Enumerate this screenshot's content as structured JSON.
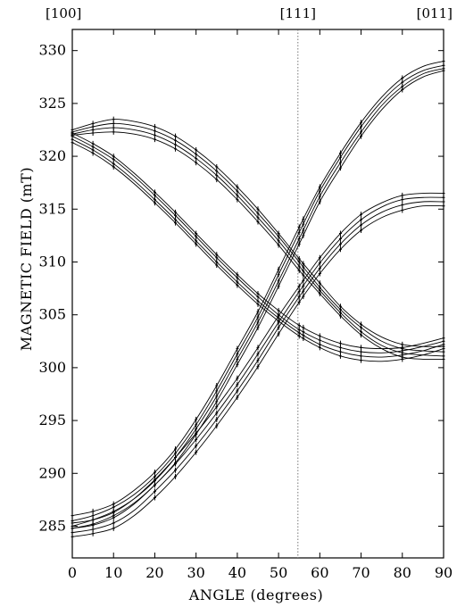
{
  "chart_data": {
    "type": "line",
    "title": "",
    "xlabel": "ANGLE (degrees)",
    "ylabel": "MAGNETIC FIELD (mT)",
    "xlim": [
      0,
      90
    ],
    "ylim": [
      282,
      332
    ],
    "x_ticks": [
      0,
      10,
      20,
      30,
      40,
      50,
      60,
      70,
      80,
      90
    ],
    "y_ticks": [
      285,
      290,
      295,
      300,
      305,
      310,
      315,
      320,
      325,
      330
    ],
    "grid": false,
    "legend": "none",
    "crystal_directions": [
      {
        "label": "[100]",
        "angle": 0
      },
      {
        "label": "[111]",
        "angle": 54.7
      },
      {
        "label": "[011]",
        "angle": 90
      }
    ],
    "reference_line": {
      "angle": 54.7,
      "style": "dotted"
    },
    "x": [
      0,
      5,
      10,
      15,
      20,
      25,
      30,
      35,
      40,
      45,
      50,
      55,
      60,
      65,
      70,
      75,
      80,
      85,
      90
    ],
    "series": [
      {
        "values": [
          322.5,
          323.1,
          323.5,
          323.3,
          322.8,
          321.9,
          320.6,
          319.0,
          317.1,
          315.0,
          312.7,
          310.3,
          308.0,
          305.8,
          304.1,
          302.9,
          302.2,
          302.0,
          302.0
        ]
      },
      {
        "values": [
          322.3,
          322.8,
          323.1,
          322.9,
          322.4,
          321.5,
          320.2,
          318.6,
          316.7,
          314.6,
          312.4,
          310.0,
          307.6,
          305.5,
          303.8,
          302.5,
          301.8,
          301.6,
          301.5
        ]
      },
      {
        "values": [
          322.1,
          322.5,
          322.7,
          322.5,
          322.0,
          321.1,
          319.8,
          318.2,
          316.3,
          314.2,
          312.0,
          309.6,
          307.3,
          305.2,
          303.4,
          302.1,
          301.4,
          301.2,
          301.1
        ]
      },
      {
        "values": [
          322.0,
          322.2,
          322.3,
          322.1,
          321.6,
          320.7,
          319.4,
          317.8,
          315.9,
          313.8,
          311.6,
          309.2,
          307.0,
          304.9,
          303.1,
          301.8,
          301.0,
          300.8,
          300.8
        ]
      },
      {
        "values": [
          322.2,
          321.2,
          320.0,
          318.4,
          316.6,
          314.7,
          312.7,
          310.7,
          308.8,
          307.0,
          305.4,
          304.0,
          303.0,
          302.3,
          301.9,
          301.8,
          301.9,
          302.3,
          302.8
        ]
      },
      {
        "values": [
          321.9,
          320.9,
          319.7,
          318.1,
          316.3,
          314.4,
          312.4,
          310.4,
          308.5,
          306.7,
          305.0,
          303.6,
          302.6,
          301.9,
          301.5,
          301.4,
          301.6,
          302.0,
          302.5
        ]
      },
      {
        "values": [
          321.6,
          320.6,
          319.3,
          317.7,
          315.9,
          314.0,
          312.0,
          310.0,
          308.1,
          306.3,
          304.7,
          303.3,
          302.2,
          301.5,
          301.1,
          301.0,
          301.2,
          301.6,
          302.2
        ]
      },
      {
        "values": [
          321.3,
          320.3,
          319.0,
          317.4,
          315.6,
          313.7,
          311.7,
          309.7,
          307.8,
          306.0,
          304.4,
          303.0,
          301.9,
          301.1,
          300.7,
          300.6,
          300.8,
          301.2,
          301.8
        ]
      },
      {
        "values": [
          286.0,
          286.4,
          287.1,
          288.4,
          290.1,
          292.3,
          295.1,
          298.3,
          301.8,
          305.3,
          309.3,
          313.3,
          317.1,
          320.3,
          323.2,
          325.6,
          327.4,
          328.5,
          329.0
        ]
      },
      {
        "values": [
          285.5,
          286.0,
          286.8,
          288.0,
          289.7,
          291.9,
          294.6,
          297.8,
          301.3,
          304.8,
          308.8,
          312.8,
          316.7,
          319.9,
          322.8,
          325.2,
          327.0,
          328.1,
          328.6
        ]
      },
      {
        "values": [
          285.0,
          285.6,
          286.4,
          287.6,
          289.3,
          291.5,
          294.2,
          297.3,
          300.8,
          304.3,
          308.2,
          312.2,
          316.2,
          319.4,
          322.3,
          324.8,
          326.6,
          327.8,
          328.3
        ]
      },
      {
        "values": [
          284.8,
          285.2,
          286.0,
          287.2,
          288.9,
          291.0,
          293.7,
          296.8,
          300.3,
          303.8,
          307.7,
          311.7,
          315.7,
          318.9,
          321.9,
          324.4,
          326.3,
          327.5,
          328.1
        ]
      },
      {
        "values": [
          285.3,
          285.6,
          286.3,
          287.6,
          289.4,
          291.5,
          293.8,
          296.3,
          299.0,
          301.9,
          304.9,
          307.7,
          310.4,
          312.7,
          314.5,
          315.6,
          316.3,
          316.5,
          316.5
        ]
      },
      {
        "values": [
          284.8,
          285.1,
          285.8,
          287.1,
          288.9,
          290.9,
          293.2,
          295.7,
          298.4,
          301.3,
          304.3,
          307.2,
          309.9,
          312.2,
          314.0,
          315.2,
          315.9,
          316.1,
          316.1
        ]
      },
      {
        "values": [
          284.4,
          284.7,
          285.3,
          286.5,
          288.3,
          290.3,
          292.6,
          295.1,
          297.8,
          300.7,
          303.8,
          306.7,
          309.4,
          311.7,
          313.5,
          314.7,
          315.4,
          315.7,
          315.7
        ]
      },
      {
        "values": [
          284.0,
          284.3,
          284.8,
          286.0,
          287.7,
          289.7,
          292.0,
          294.5,
          297.2,
          300.1,
          303.2,
          306.2,
          308.9,
          311.2,
          313.0,
          314.2,
          314.9,
          315.3,
          315.3
        ]
      }
    ],
    "marker_x": [
      0,
      5,
      10,
      20,
      25,
      30,
      35,
      40,
      45,
      50,
      55,
      56,
      60,
      65,
      70,
      80,
      90
    ]
  }
}
